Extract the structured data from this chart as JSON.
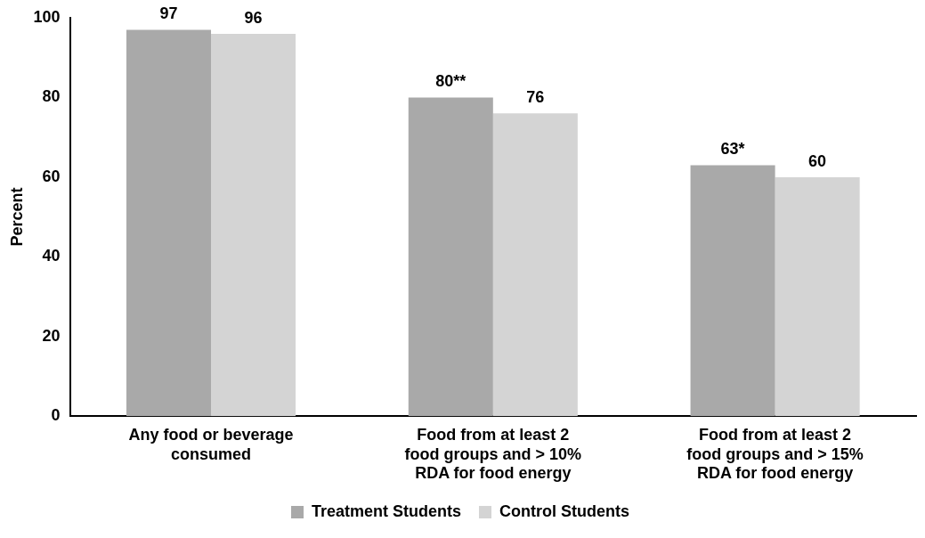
{
  "chart_data": {
    "type": "bar",
    "ylabel": "Percent",
    "categories": [
      "Any food or beverage consumed",
      "Food from at least 2 food groups and > 10% RDA for food energy",
      "Food from at least 2 food groups and > 15% RDA for food energy"
    ],
    "series": [
      {
        "name": "Treatment Students",
        "color": "#a9a9a9",
        "values": [
          97,
          80,
          63
        ],
        "value_labels": [
          "97",
          "80**",
          "63*"
        ]
      },
      {
        "name": "Control Students",
        "color": "#d4d4d4",
        "values": [
          96,
          76,
          60
        ],
        "value_labels": [
          "96",
          "76",
          "60"
        ]
      }
    ],
    "ylim": [
      0,
      100
    ],
    "yticks": [
      0,
      20,
      40,
      60,
      80,
      100
    ],
    "grid": false,
    "legend": "bottom"
  }
}
